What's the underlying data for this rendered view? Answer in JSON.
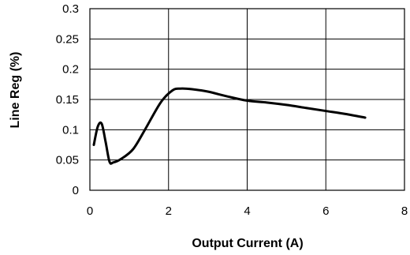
{
  "chart_data": {
    "type": "line",
    "title": "",
    "xlabel": "Output Current (A)",
    "ylabel": "Line Reg (%)",
    "xlim": [
      0,
      8
    ],
    "ylim": [
      0,
      0.3
    ],
    "x_ticks": [
      0,
      2,
      4,
      6,
      8
    ],
    "x_tick_labels": [
      "0",
      "2",
      "4",
      "6",
      "8"
    ],
    "y_ticks": [
      0,
      0.05,
      0.1,
      0.15,
      0.2,
      0.25,
      0.3
    ],
    "y_tick_labels": [
      "0",
      "0.05",
      "0.1",
      "0.15",
      "0.2",
      "0.25",
      "0.3"
    ],
    "grid": true,
    "series": [
      {
        "x": [
          0.1,
          0.2,
          0.3,
          0.4,
          0.5,
          0.6,
          0.8,
          1.1,
          1.4,
          1.8,
          2.1,
          2.3,
          2.6,
          3.0,
          3.5,
          4.0,
          4.5,
          5.0,
          5.5,
          6.0,
          6.5,
          7.0
        ],
        "values": [
          0.075,
          0.105,
          0.11,
          0.08,
          0.047,
          0.046,
          0.052,
          0.068,
          0.1,
          0.145,
          0.165,
          0.168,
          0.167,
          0.163,
          0.155,
          0.148,
          0.145,
          0.141,
          0.136,
          0.131,
          0.126,
          0.12
        ]
      }
    ]
  }
}
